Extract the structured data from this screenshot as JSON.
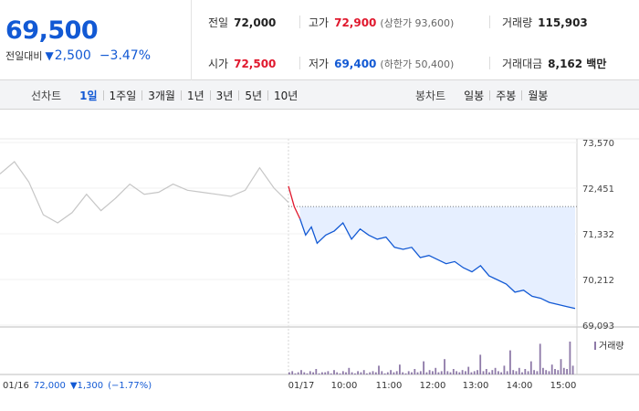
{
  "quote": {
    "price": "69,500",
    "change_label": "전일대비",
    "change_symbol": "▼",
    "change_amount": "2,500",
    "change_rate": "−3.47%"
  },
  "stats": {
    "prev_close": {
      "label": "전일",
      "value": "72,000"
    },
    "high": {
      "label": "고가",
      "value": "72,900",
      "limit": "(상한가 93,600)"
    },
    "volume": {
      "label": "거래량",
      "value": "115,903"
    },
    "open": {
      "label": "시가",
      "value": "72,500"
    },
    "low": {
      "label": "저가",
      "value": "69,400",
      "limit": "(하한가 50,400)"
    },
    "amount": {
      "label": "거래대금",
      "value": "8,162 백만"
    }
  },
  "toolbar": {
    "line_label": "선차트",
    "line_periods": [
      "1일",
      "1주일",
      "3개월",
      "1년",
      "3년",
      "5년",
      "10년"
    ],
    "active_period": "1일",
    "candle_label": "봉차트",
    "candle_periods": [
      "일봉",
      "주봉",
      "월봉"
    ]
  },
  "colors": {
    "down": "#1259d4",
    "up": "#e0182d",
    "prev_line": "#c6c6c6",
    "area_fill": "#e6efff",
    "volume_bar": "#8e7aa8"
  },
  "chart_data": {
    "type": "line",
    "y_ticks": [
      "73,570",
      "72,451",
      "71,332",
      "70,212",
      "69,093"
    ],
    "ylim": [
      69093,
      73570
    ],
    "x_ticks": [
      "01/17",
      "10:00",
      "11:00",
      "12:00",
      "13:00",
      "14:00",
      "15:00"
    ],
    "prev_day": {
      "date": "01/16",
      "close": "72,000",
      "change_symbol": "▼",
      "change_amount": "1,300",
      "change_rate": "(−1.77%)",
      "x": [
        0,
        5,
        10,
        15,
        20,
        25,
        30,
        35,
        40,
        45,
        50,
        55,
        60,
        65,
        70,
        75,
        80,
        85,
        90,
        95,
        100
      ],
      "y": [
        72800,
        73100,
        72600,
        71800,
        71600,
        71850,
        72300,
        71900,
        72200,
        72550,
        72300,
        72350,
        72550,
        72400,
        72350,
        72300,
        72250,
        72400,
        72950,
        72450,
        72100
      ]
    },
    "today": {
      "reference_level": 72000,
      "x": [
        0,
        2,
        4,
        6,
        8,
        10,
        13,
        16,
        19,
        22,
        25,
        28,
        31,
        34,
        37,
        40,
        43,
        46,
        49,
        52,
        55,
        58,
        61,
        64,
        67,
        70,
        73,
        76,
        79,
        82,
        85,
        88,
        91,
        94,
        97,
        100
      ],
      "y": [
        72500,
        72000,
        71700,
        71300,
        71500,
        71100,
        71300,
        71400,
        71600,
        71200,
        71450,
        71300,
        71200,
        71250,
        71000,
        70950,
        71000,
        70750,
        70800,
        70700,
        70600,
        70650,
        70500,
        70400,
        70550,
        70300,
        70200,
        70100,
        69900,
        69950,
        69800,
        69750,
        69650,
        69600,
        69550,
        69500
      ],
      "open_segment_points": 3
    },
    "volume": {
      "legend": "거래량",
      "bars": [
        2,
        3,
        1,
        2,
        4,
        2,
        1,
        3,
        2,
        5,
        1,
        2,
        2,
        3,
        1,
        4,
        2,
        1,
        3,
        2,
        6,
        2,
        1,
        3,
        2,
        4,
        1,
        2,
        3,
        2,
        8,
        3,
        1,
        2,
        4,
        2,
        3,
        9,
        2,
        1,
        3,
        2,
        5,
        2,
        3,
        12,
        2,
        4,
        3,
        6,
        2,
        3,
        14,
        3,
        2,
        5,
        3,
        2,
        4,
        3,
        7,
        2,
        3,
        4,
        18,
        3,
        5,
        2,
        4,
        6,
        3,
        2,
        8,
        3,
        22,
        4,
        3,
        6,
        2,
        5,
        3,
        12,
        4,
        3,
        28,
        6,
        4,
        3,
        9,
        5,
        4,
        14,
        6,
        5,
        30,
        8
      ]
    }
  }
}
